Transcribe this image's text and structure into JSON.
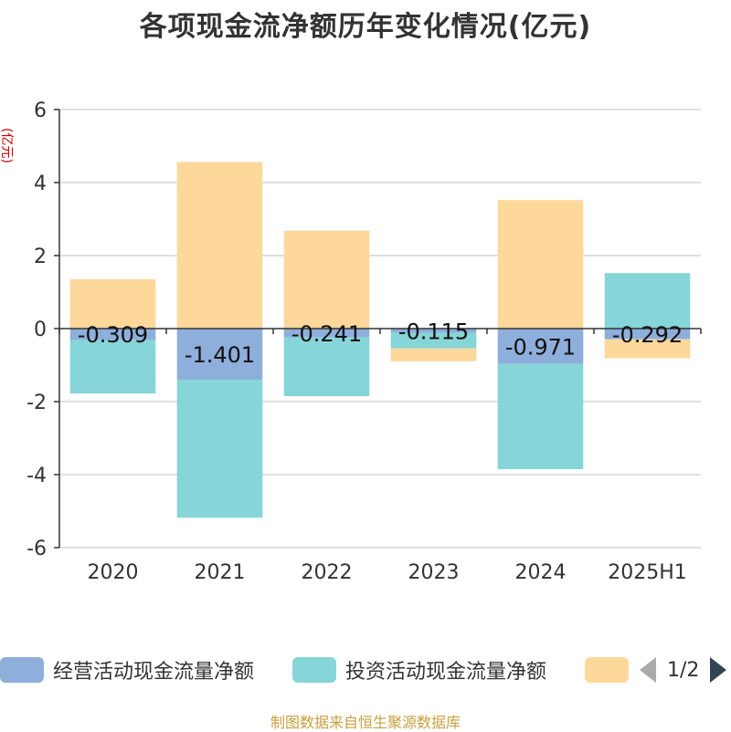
{
  "chart_data": {
    "type": "bar",
    "stacked": true,
    "title": "各项现金流净额历年变化情况(亿元)",
    "unit_label": "(亿元)",
    "categories": [
      "2020",
      "2021",
      "2022",
      "2023",
      "2024",
      "2025H1"
    ],
    "ylim": [
      -6,
      6
    ],
    "yticks": [
      6,
      4,
      2,
      0,
      -2,
      -4,
      -6
    ],
    "grid": true,
    "legend_position": "bottom",
    "series": [
      {
        "name": "经营活动现金流量净额",
        "color": "#8eaedb",
        "values": [
          -0.309,
          -1.401,
          -0.241,
          -0.115,
          -0.971,
          -0.292
        ],
        "labels": [
          "-0.309",
          "-1.401",
          "-0.241",
          "-0.115",
          "-0.971",
          "-0.292"
        ]
      },
      {
        "name": "投资活动现金流量净额",
        "color": "#86d5d8",
        "values": [
          -1.47,
          -3.78,
          -1.61,
          -0.43,
          -2.88,
          1.52
        ]
      },
      {
        "name": "",
        "color": "#fed89b",
        "values": [
          1.35,
          4.56,
          2.68,
          -0.35,
          3.52,
          -0.52
        ]
      }
    ]
  },
  "legend": {
    "pager": "1/2"
  },
  "footer": "制图数据来自恒生聚源数据库"
}
